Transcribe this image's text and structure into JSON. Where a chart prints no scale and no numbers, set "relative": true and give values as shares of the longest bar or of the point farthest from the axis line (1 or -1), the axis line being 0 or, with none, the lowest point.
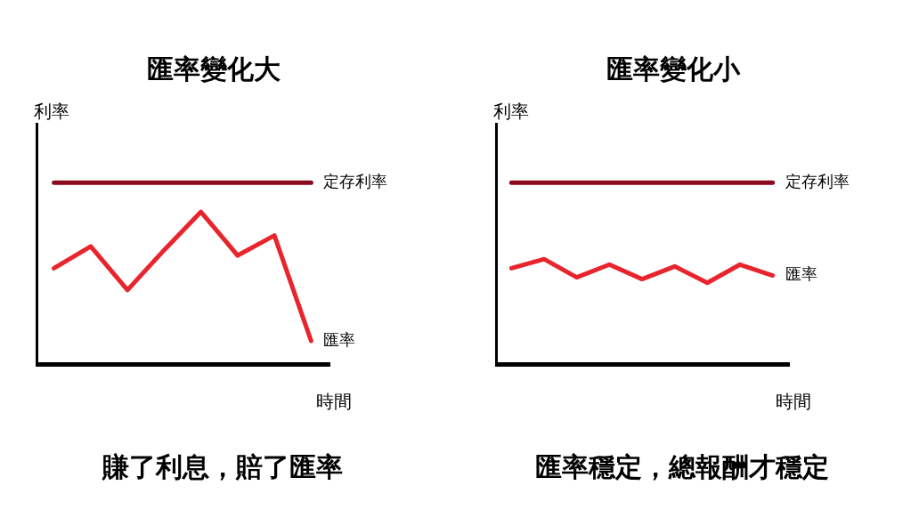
{
  "chart_data": [
    {
      "type": "line",
      "title": "匯率變化大",
      "ylabel": "利率",
      "xlabel": "時間",
      "relative": true,
      "legend": false,
      "grid": false,
      "marker": "none",
      "categories": [
        null,
        null,
        null,
        null,
        null,
        null,
        null,
        null
      ],
      "series": [
        {
          "name": "定存利率",
          "color": "#8b0a1e",
          "values": [
            1,
            1,
            1,
            1,
            1,
            1,
            1,
            1
          ]
        },
        {
          "name": "匯率",
          "color": "#e8242c",
          "values": [
            0.53,
            0.65,
            0.41,
            0.63,
            0.84,
            0.6,
            0.71,
            0.13
          ]
        }
      ],
      "annotations": [
        "賺了利息，賠了匯率"
      ]
    },
    {
      "type": "line",
      "title": "匯率變化小",
      "ylabel": "利率",
      "xlabel": "時間",
      "relative": true,
      "legend": false,
      "grid": false,
      "marker": "none",
      "categories": [
        null,
        null,
        null,
        null,
        null,
        null,
        null,
        null,
        null
      ],
      "series": [
        {
          "name": "定存利率",
          "color": "#8b0a1e",
          "values": [
            1,
            1,
            1,
            1,
            1,
            1,
            1,
            1,
            1
          ]
        },
        {
          "name": "匯率",
          "color": "#e8242c",
          "values": [
            0.53,
            0.58,
            0.48,
            0.55,
            0.47,
            0.54,
            0.45,
            0.55,
            0.49
          ]
        }
      ],
      "annotations": [
        "匯率穩定，總報酬才穩定"
      ]
    }
  ]
}
